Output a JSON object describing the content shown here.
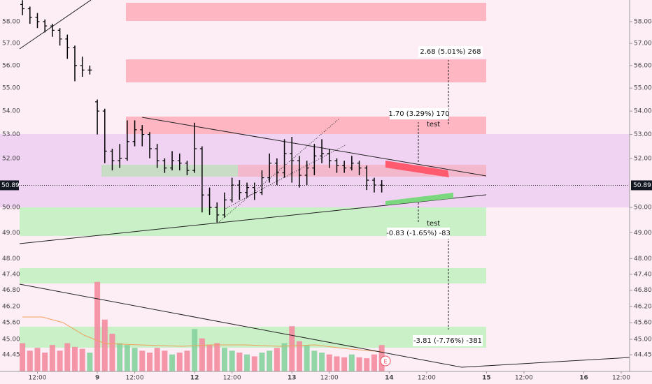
{
  "chart_data": {
    "type": "ohlc",
    "x": [
      -5,
      -4.5,
      -4,
      -3.5,
      -3,
      -2.5,
      -2,
      -1.5,
      -1,
      -0.5,
      0,
      0.5,
      1,
      1.5,
      2,
      2.5,
      3,
      3.5,
      4,
      4.5,
      5,
      5.5,
      6,
      6.5,
      7,
      7.5,
      8,
      8.5,
      9,
      9.5,
      10,
      10.5,
      11,
      11.5,
      12,
      12.5,
      13,
      13.5,
      14,
      14.5,
      15,
      15.5,
      16,
      16.5,
      17,
      17.5,
      18,
      18.5,
      19
    ],
    "open": [
      58.8,
      58.6,
      58.2,
      58.0,
      57.8,
      57.6,
      57.2,
      56.8,
      56.0,
      55.8,
      54.4,
      54.0,
      52.3,
      51.9,
      52.0,
      52.7,
      53.2,
      53.0,
      52.4,
      51.9,
      51.6,
      51.9,
      51.8,
      51.5,
      52.4,
      50.5,
      50.0,
      49.7,
      50.3,
      50.9,
      50.6,
      50.8,
      50.6,
      51.2,
      51.8,
      51.4,
      52.2,
      51.9,
      51.3,
      51.6,
      52.1,
      52.2,
      51.9,
      51.7,
      51.6,
      51.8,
      51.6,
      51.1,
      50.9
    ],
    "high": [
      59.0,
      58.7,
      58.4,
      58.1,
      57.9,
      57.7,
      57.4,
      56.9,
      56.4,
      56.0,
      54.5,
      54.1,
      52.4,
      52.6,
      53.6,
      53.6,
      53.4,
      53.1,
      52.6,
      52.0,
      52.3,
      52.2,
      51.9,
      53.5,
      52.5,
      50.8,
      50.2,
      50.6,
      51.2,
      51.1,
      51.0,
      51.0,
      51.5,
      52.2,
      52.0,
      52.8,
      52.9,
      52.1,
      51.9,
      52.6,
      52.8,
      52.4,
      52.0,
      51.9,
      52.1,
      51.9,
      51.7,
      51.2,
      51.1
    ],
    "low": [
      58.3,
      57.9,
      57.7,
      57.5,
      57.3,
      56.9,
      56.3,
      55.3,
      55.5,
      55.6,
      53.0,
      51.8,
      51.5,
      51.6,
      51.9,
      52.5,
      52.5,
      52.0,
      51.6,
      51.4,
      51.5,
      51.5,
      51.3,
      51.4,
      49.8,
      49.7,
      49.4,
      49.6,
      50.2,
      50.3,
      50.4,
      50.3,
      50.5,
      51.0,
      50.9,
      51.2,
      51.0,
      50.8,
      50.9,
      51.3,
      51.8,
      51.6,
      51.4,
      51.4,
      51.5,
      51.3,
      50.7,
      50.6,
      50.6
    ],
    "close": [
      58.6,
      58.2,
      58.0,
      57.8,
      57.6,
      57.2,
      56.8,
      56.0,
      55.8,
      55.8,
      54.0,
      52.3,
      51.9,
      52.0,
      52.7,
      53.2,
      53.0,
      52.4,
      51.9,
      51.6,
      51.9,
      51.8,
      51.5,
      52.4,
      50.5,
      50.0,
      49.7,
      50.3,
      50.9,
      50.6,
      50.8,
      50.6,
      51.2,
      51.8,
      51.4,
      52.2,
      51.9,
      51.3,
      51.6,
      52.1,
      52.2,
      51.9,
      51.7,
      51.6,
      51.8,
      51.6,
      51.1,
      50.9,
      50.89
    ],
    "volume": [
      30,
      22,
      25,
      20,
      28,
      22,
      30,
      26,
      24,
      20,
      95,
      55,
      40,
      30,
      28,
      25,
      22,
      20,
      25,
      22,
      18,
      20,
      22,
      45,
      35,
      28,
      30,
      25,
      22,
      20,
      18,
      16,
      20,
      22,
      25,
      30,
      48,
      32,
      28,
      22,
      20,
      18,
      16,
      15,
      18,
      15,
      14,
      18,
      28
    ],
    "bar_color": "#000000",
    "volume_up_color": "#86d3a0",
    "volume_down_color": "#f48ba0",
    "log_scale": true,
    "xlim": [
      -6.5,
      35.56
    ],
    "xticks": [
      {
        "value": -4,
        "label": "12:00"
      },
      {
        "value": 0,
        "label": "9"
      },
      {
        "value": 2.5,
        "label": "12:00"
      },
      {
        "value": 6.5,
        "label": "12"
      },
      {
        "value": 9,
        "label": "12:00"
      },
      {
        "value": 13,
        "label": "13"
      },
      {
        "value": 15.5,
        "label": "12:00"
      },
      {
        "value": 19.5,
        "label": "14"
      },
      {
        "value": 22,
        "label": "12:00"
      },
      {
        "value": 26,
        "label": "15"
      },
      {
        "value": 28.5,
        "label": "12:00"
      },
      {
        "value": 32.5,
        "label": "16"
      },
      {
        "value": 35,
        "label": "12:00"
      }
    ],
    "ylim": [
      43.86,
      59.01
    ],
    "yticks": [
      {
        "value": 58,
        "label": "58.00"
      },
      {
        "value": 57,
        "label": "57.00"
      },
      {
        "value": 56,
        "label": "56.00"
      },
      {
        "value": 55,
        "label": "55.00"
      },
      {
        "value": 54,
        "label": "54.00"
      },
      {
        "value": 53,
        "label": "53.00"
      },
      {
        "value": 52,
        "label": "52.00"
      },
      {
        "value": 50,
        "label": "50.00"
      },
      {
        "value": 49,
        "label": "49.00"
      },
      {
        "value": 48,
        "label": "48.00"
      },
      {
        "value": 47.4,
        "label": "47.40"
      },
      {
        "value": 46.8,
        "label": "46.80"
      },
      {
        "value": 46.2,
        "label": "46.20"
      },
      {
        "value": 45.6,
        "label": "45.60"
      },
      {
        "value": 45,
        "label": "45.00"
      },
      44.45
    ],
    "last_price": 50.89,
    "annotations": [
      "2.68 (5.01%) 268",
      "1.70 (3.29%) 170",
      "test",
      "test",
      "-0.83 (-1.65%) -83",
      "-3.81 (-7.76%) -381",
      "E"
    ]
  }
}
